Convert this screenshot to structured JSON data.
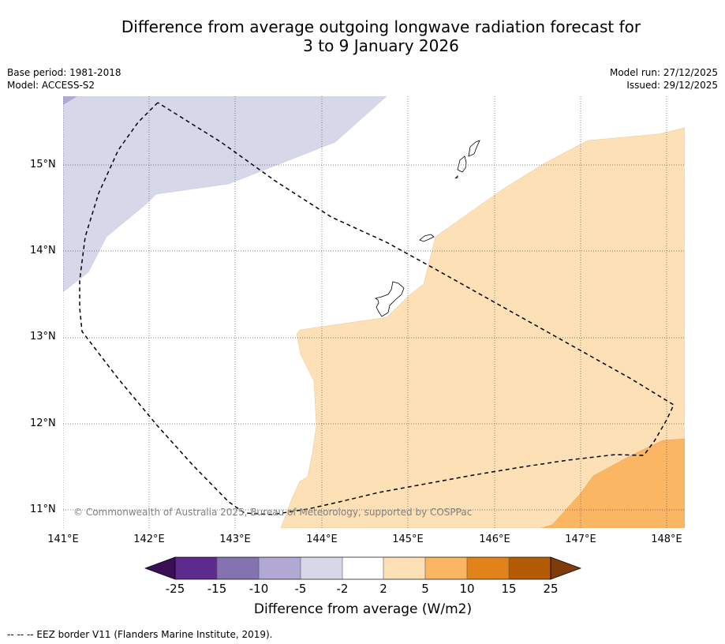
{
  "title": {
    "line1": "Difference from average outgoing longwave radiation forecast for",
    "line2": "3 to 9 January 2026"
  },
  "meta": {
    "base_period": "Base period: 1981-2018",
    "model": "Model: ACCESS-S2",
    "model_run": "Model run: 27/12/2025",
    "issued": "Issued: 29/12/2025"
  },
  "map": {
    "lat_labels": [
      "15°N",
      "14°N",
      "13°N",
      "12°N",
      "11°N"
    ],
    "lon_labels": [
      "141°E",
      "142°E",
      "143°E",
      "144°E",
      "145°E",
      "146°E",
      "147°E",
      "148°E"
    ],
    "copyright": "© Commonwealth of Australia 2025, Bureau of Meteorology, supported by COSPPac",
    "colors": {
      "light_purple": "#d7d7ea",
      "mid_purple": "#b1a9d3",
      "light_orange": "#fde0b6",
      "mid_orange": "#fbb663",
      "land_fill": "#ffffff",
      "coast": "#000000"
    }
  },
  "legend": {
    "tick_labels": [
      "-25",
      "-15",
      "-10",
      "-5",
      "-2",
      "2",
      "5",
      "10",
      "15",
      "25"
    ],
    "title": "Difference from average (W/m2)",
    "colors": [
      "#3b0f55",
      "#5d2a8e",
      "#8473b0",
      "#b1a9d3",
      "#d7d7ea",
      "#ffffff",
      "#fde0b6",
      "#fbb663",
      "#e2831a",
      "#b45b06",
      "#7f3b08"
    ]
  },
  "footnote": "--  --  -- EEZ border V11 (Flanders Marine Institute, 2019)."
}
